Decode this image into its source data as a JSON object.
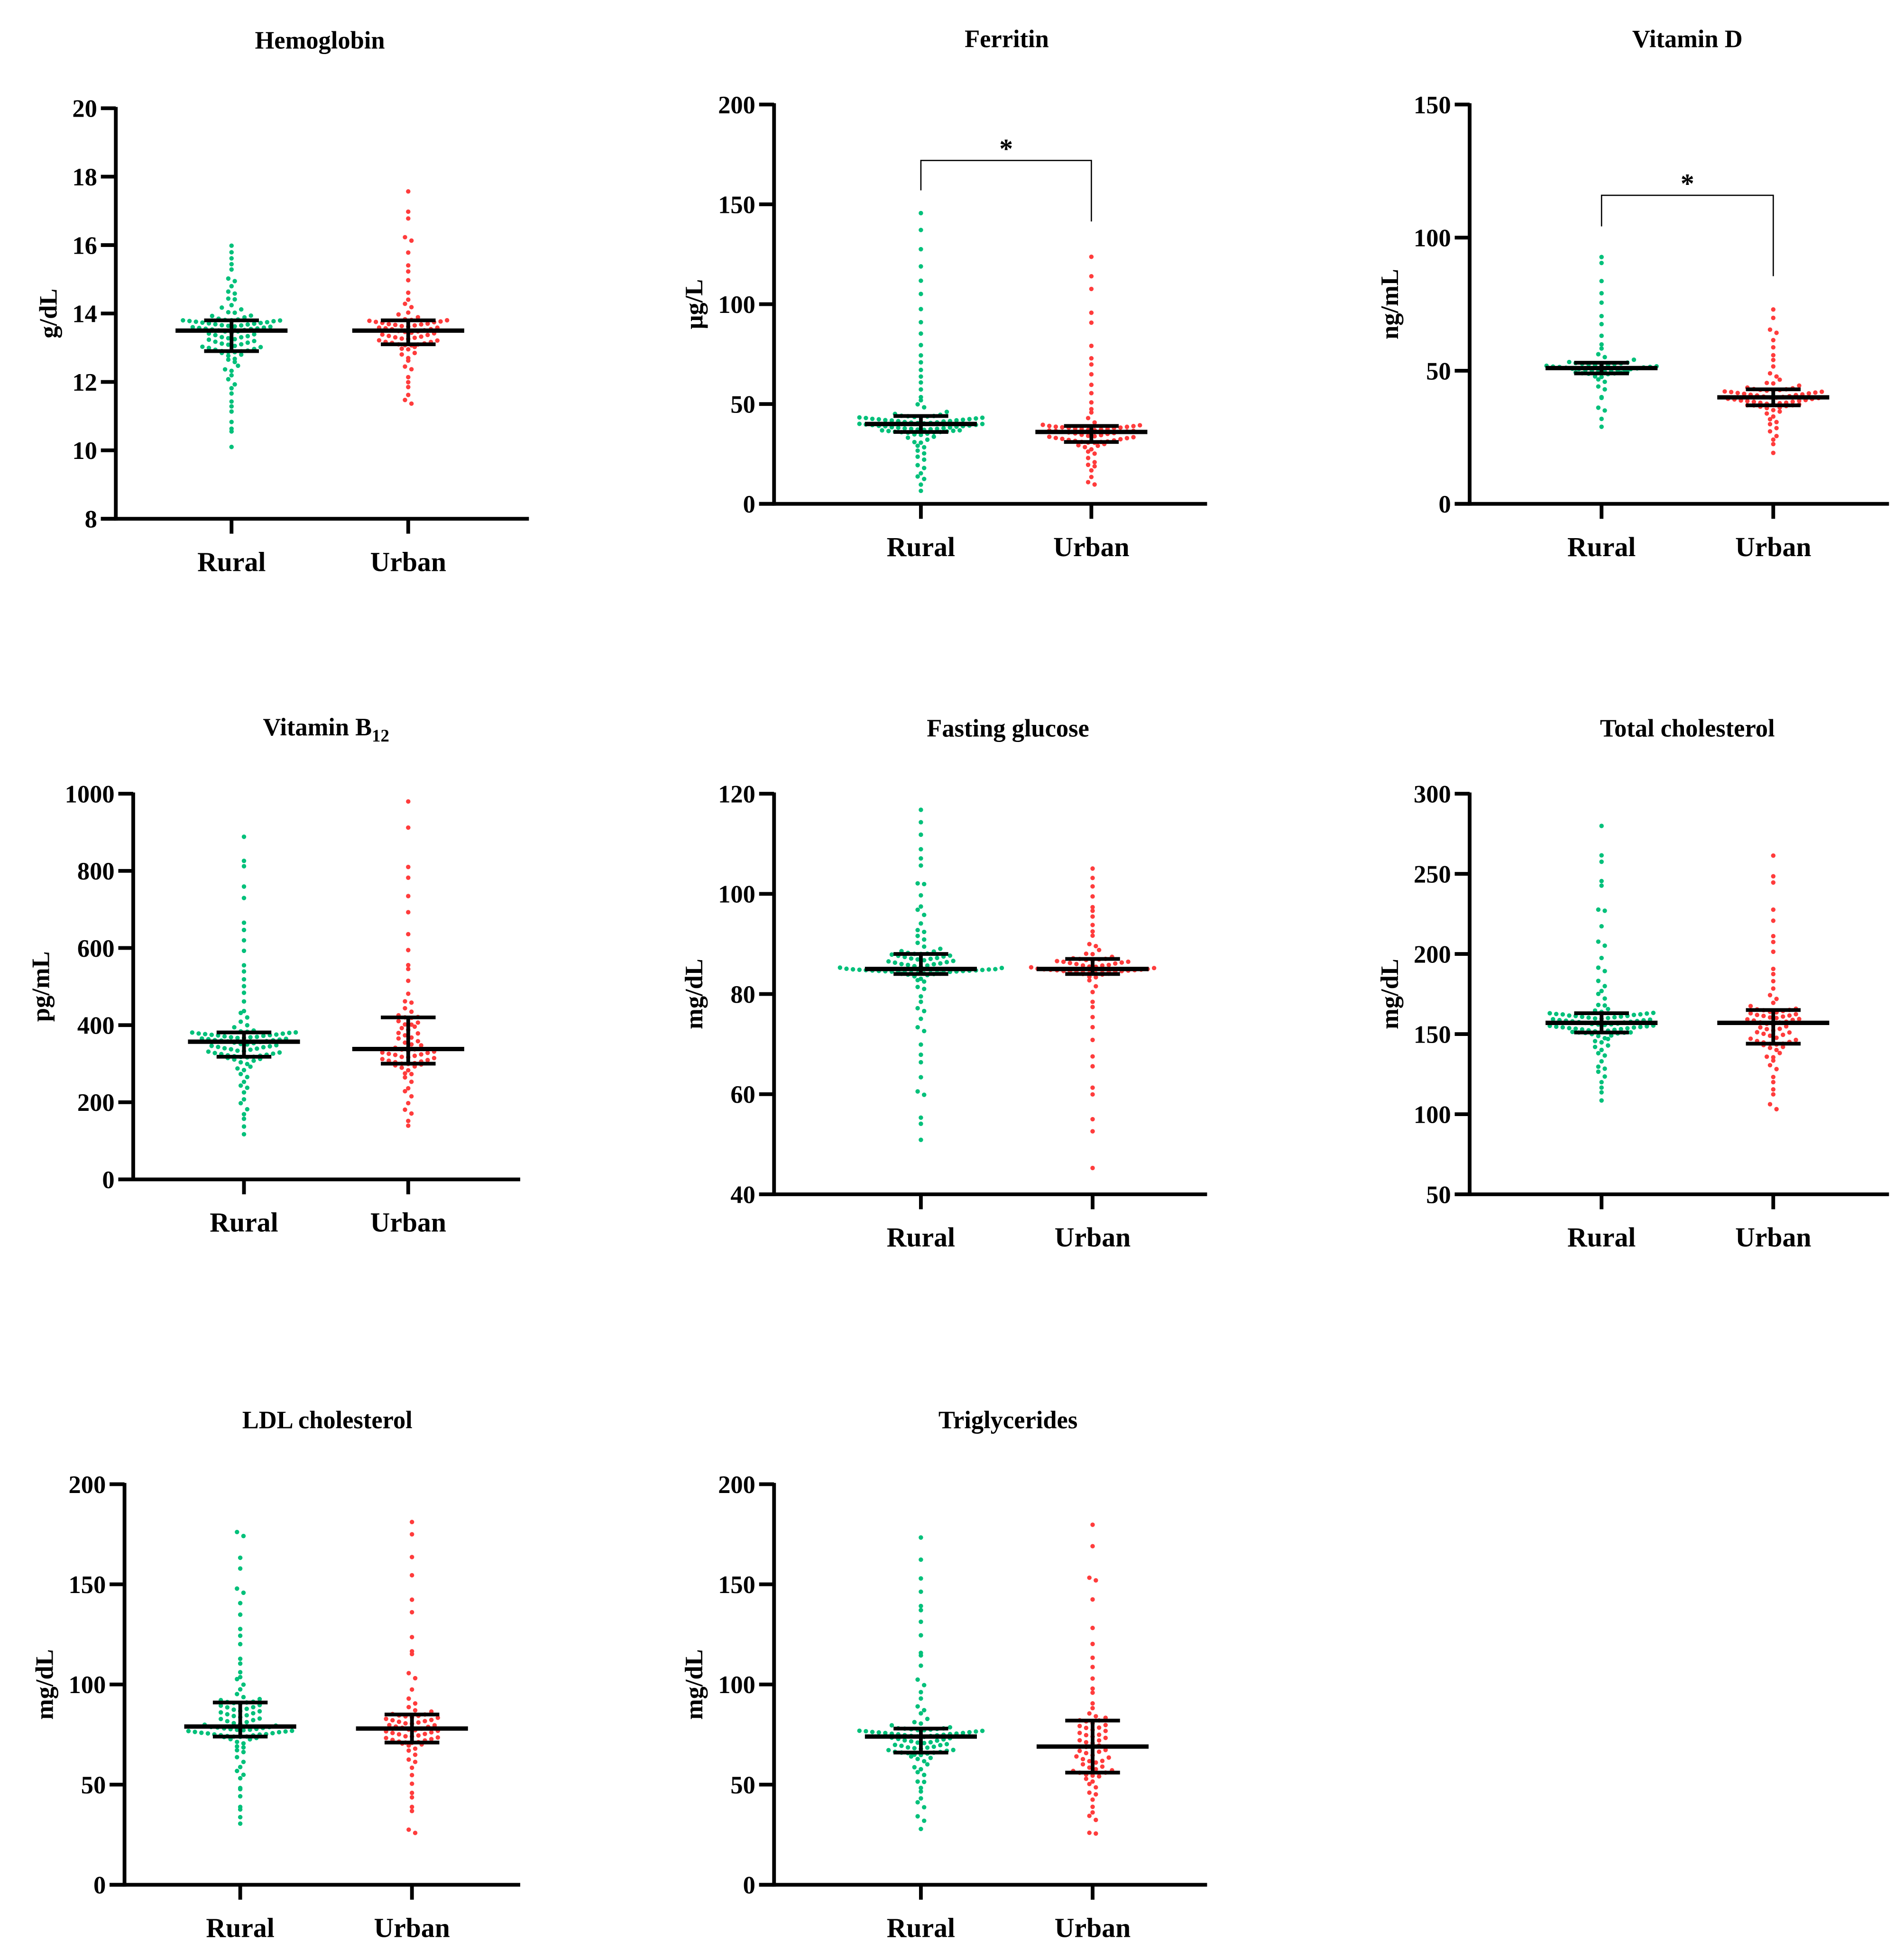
{
  "colors": {
    "rural": "#00c07a",
    "urban": "#ff3c3c",
    "axis": "#000000"
  },
  "chart_data": [
    {
      "type": "scatter",
      "title": "Hemoglobin",
      "ylabel": "g/dL",
      "ylim": [
        8,
        20
      ],
      "yticks": [
        8,
        10,
        12,
        14,
        16,
        18,
        20
      ],
      "categories": [
        "Rural",
        "Urban"
      ],
      "groups": [
        {
          "name": "Rural",
          "median": 13.5,
          "q1": 12.9,
          "q3": 13.8,
          "min": 10.1,
          "max": 16.0,
          "n": 100
        },
        {
          "name": "Urban",
          "median": 13.5,
          "q1": 13.1,
          "q3": 13.8,
          "min": 11.2,
          "max": 17.8,
          "n": 75
        }
      ],
      "significance": null
    },
    {
      "type": "scatter",
      "title": "Ferritin",
      "ylabel": "μg/L",
      "ylim": [
        0,
        200
      ],
      "yticks": [
        0,
        50,
        100,
        150,
        200
      ],
      "categories": [
        "Rural",
        "Urban"
      ],
      "groups": [
        {
          "name": "Rural",
          "median": 40,
          "q1": 36,
          "q3": 44,
          "min": 5,
          "max": 147,
          "n": 100
        },
        {
          "name": "Urban",
          "median": 36,
          "q1": 31,
          "q3": 39,
          "min": 7,
          "max": 132,
          "n": 75
        }
      ],
      "significance": "*"
    },
    {
      "type": "scatter",
      "title": "Vitamin D",
      "ylabel": "ng/mL",
      "ylim": [
        0,
        150
      ],
      "yticks": [
        0,
        50,
        100,
        150
      ],
      "categories": [
        "Rural",
        "Urban"
      ],
      "groups": [
        {
          "name": "Rural",
          "median": 51,
          "q1": 49,
          "q3": 53,
          "min": 27,
          "max": 98,
          "n": 60
        },
        {
          "name": "Urban",
          "median": 40,
          "q1": 37,
          "q3": 43,
          "min": 19,
          "max": 75,
          "n": 75
        }
      ],
      "significance": "*"
    },
    {
      "type": "scatter",
      "title": "Vitamin B",
      "title_sub": "12",
      "ylabel": "pg/mL",
      "ylim": [
        0,
        1000
      ],
      "yticks": [
        0,
        200,
        400,
        600,
        800,
        1000
      ],
      "categories": [
        "Rural",
        "Urban"
      ],
      "groups": [
        {
          "name": "Rural",
          "median": 357,
          "q1": 318,
          "q3": 381,
          "min": 110,
          "max": 900,
          "n": 100
        },
        {
          "name": "Urban",
          "median": 338,
          "q1": 300,
          "q3": 420,
          "min": 120,
          "max": 980,
          "n": 75
        }
      ],
      "significance": null
    },
    {
      "type": "scatter",
      "title": "Fasting glucose",
      "ylabel": "mg/dL",
      "ylim": [
        40,
        120
      ],
      "yticks": [
        40,
        60,
        80,
        100,
        120
      ],
      "categories": [
        "Rural",
        "Urban"
      ],
      "groups": [
        {
          "name": "Rural",
          "median": 85,
          "q1": 84,
          "q3": 88,
          "min": 49,
          "max": 117,
          "n": 100
        },
        {
          "name": "Urban",
          "median": 85,
          "q1": 84,
          "q3": 87,
          "min": 45,
          "max": 107,
          "n": 75
        }
      ],
      "significance": null
    },
    {
      "type": "scatter",
      "title": "Total cholesterol",
      "ylabel": "mg/dL",
      "ylim": [
        50,
        300
      ],
      "yticks": [
        50,
        100,
        150,
        200,
        250,
        300
      ],
      "categories": [
        "Rural",
        "Urban"
      ],
      "groups": [
        {
          "name": "Rural",
          "median": 157,
          "q1": 151,
          "q3": 163,
          "min": 107,
          "max": 281,
          "n": 100
        },
        {
          "name": "Urban",
          "median": 157,
          "q1": 144,
          "q3": 165,
          "min": 100,
          "max": 269,
          "n": 75
        }
      ],
      "significance": null
    },
    {
      "type": "scatter",
      "title": "LDL cholesterol",
      "ylabel": "mg/dL",
      "ylim": [
        0,
        200
      ],
      "yticks": [
        0,
        50,
        100,
        150,
        200
      ],
      "categories": [
        "Rural",
        "Urban"
      ],
      "groups": [
        {
          "name": "Rural",
          "median": 79,
          "q1": 74,
          "q3": 91,
          "min": 27,
          "max": 182,
          "n": 100
        },
        {
          "name": "Urban",
          "median": 78,
          "q1": 71,
          "q3": 85,
          "min": 21,
          "max": 188,
          "n": 75
        }
      ],
      "significance": null
    },
    {
      "type": "scatter",
      "title": "Triglycerides",
      "ylabel": "mg/dL",
      "ylim": [
        0,
        200
      ],
      "yticks": [
        0,
        50,
        100,
        150,
        200
      ],
      "categories": [
        "Rural",
        "Urban"
      ],
      "groups": [
        {
          "name": "Rural",
          "median": 74,
          "q1": 66,
          "q3": 78,
          "min": 27,
          "max": 176,
          "n": 100
        },
        {
          "name": "Urban",
          "median": 69,
          "q1": 56,
          "q3": 82,
          "min": 22,
          "max": 185,
          "n": 75
        }
      ],
      "significance": null
    }
  ]
}
